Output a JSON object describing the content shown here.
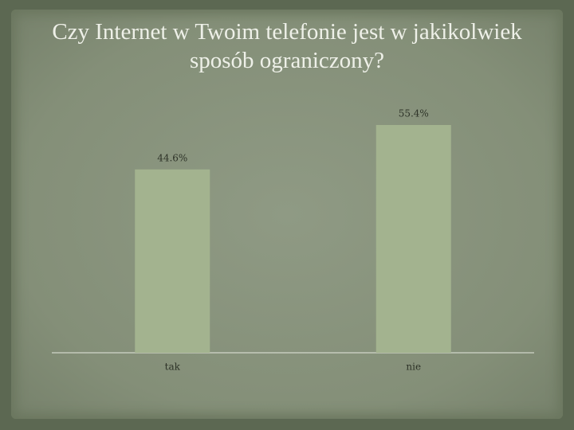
{
  "chart_data": {
    "type": "bar",
    "title": "Czy Internet w Twoim telefonie jest w jakikolwiek sposób ograniczony?",
    "categories": [
      "tak",
      "nie"
    ],
    "values": [
      44.6,
      55.4
    ],
    "value_labels": [
      "44.6%",
      "55.4%"
    ],
    "color": "#a3b38f"
  }
}
